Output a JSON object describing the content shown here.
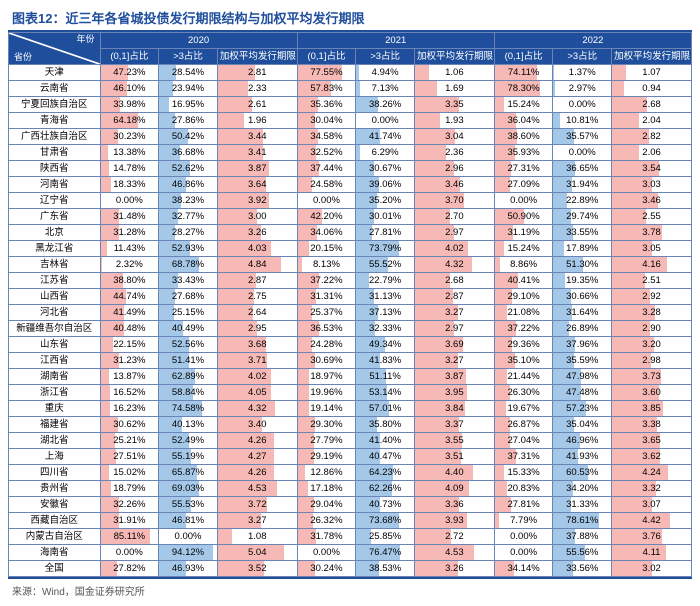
{
  "title": "图表12：近三年各省城投债发行期限结构与加权平均发行期限",
  "source": "来源：Wind，国金证券研究所",
  "header": {
    "cornerTop": "年份",
    "cornerBottom": "省份",
    "years": [
      "2020",
      "2021",
      "2022"
    ],
    "subcols": [
      "(0,1]占比",
      ">3占比",
      "加权平均发行期限"
    ]
  },
  "colors": {
    "headerBg": "#1f4e9c",
    "headerText": "#ffffff",
    "border": "#6a84b8",
    "barPink": "#f6b9b6",
    "barBlue": "#a6c8e8",
    "valText": "#000000"
  },
  "barMax": {
    "pct": 100,
    "wavg": 6
  },
  "rows": [
    {
      "name": "天津",
      "y": [
        {
          "a": 47.23,
          "b": 28.54,
          "w": 2.81
        },
        {
          "a": 77.55,
          "b": 4.94,
          "w": 1.06
        },
        {
          "a": 74.11,
          "b": 1.37,
          "w": 1.07
        }
      ]
    },
    {
      "name": "云南省",
      "y": [
        {
          "a": 46.1,
          "b": 23.94,
          "w": 2.33
        },
        {
          "a": 57.83,
          "b": 7.13,
          "w": 1.69
        },
        {
          "a": 78.3,
          "b": 2.97,
          "w": 0.94
        }
      ]
    },
    {
      "name": "宁夏回族自治区",
      "y": [
        {
          "a": 33.98,
          "b": 16.95,
          "w": 2.61
        },
        {
          "a": 35.36,
          "b": 38.26,
          "w": 3.35
        },
        {
          "a": 15.24,
          "b": 0.0,
          "w": 2.68
        }
      ]
    },
    {
      "name": "青海省",
      "y": [
        {
          "a": 64.18,
          "b": 27.86,
          "w": 1.96
        },
        {
          "a": 30.04,
          "b": 0.0,
          "w": 1.93
        },
        {
          "a": 36.04,
          "b": 10.81,
          "w": 2.04
        }
      ]
    },
    {
      "name": "广西壮族自治区",
      "y": [
        {
          "a": 30.23,
          "b": 50.42,
          "w": 3.44
        },
        {
          "a": 34.58,
          "b": 41.74,
          "w": 3.04
        },
        {
          "a": 38.6,
          "b": 35.57,
          "w": 2.82
        }
      ]
    },
    {
      "name": "甘肃省",
      "y": [
        {
          "a": 13.38,
          "b": 36.68,
          "w": 3.41
        },
        {
          "a": 32.52,
          "b": 6.29,
          "w": 2.36
        },
        {
          "a": 35.93,
          "b": 0.0,
          "w": 2.06
        }
      ]
    },
    {
      "name": "陕西省",
      "y": [
        {
          "a": 14.78,
          "b": 52.62,
          "w": 3.87
        },
        {
          "a": 37.44,
          "b": 30.67,
          "w": 2.96
        },
        {
          "a": 27.31,
          "b": 36.65,
          "w": 3.54
        }
      ]
    },
    {
      "name": "河南省",
      "y": [
        {
          "a": 18.33,
          "b": 46.86,
          "w": 3.64
        },
        {
          "a": 24.58,
          "b": 39.06,
          "w": 3.46
        },
        {
          "a": 27.09,
          "b": 31.94,
          "w": 3.03
        }
      ]
    },
    {
      "name": "辽宁省",
      "y": [
        {
          "a": 0.0,
          "b": 38.23,
          "w": 3.92
        },
        {
          "a": 0.0,
          "b": 35.2,
          "w": 3.7
        },
        {
          "a": 0.0,
          "b": 22.89,
          "w": 3.46
        }
      ]
    },
    {
      "name": "广东省",
      "y": [
        {
          "a": 31.48,
          "b": 32.77,
          "w": 3.0
        },
        {
          "a": 42.2,
          "b": 30.01,
          "w": 2.7
        },
        {
          "a": 50.9,
          "b": 29.74,
          "w": 2.55
        }
      ]
    },
    {
      "name": "北京",
      "y": [
        {
          "a": 31.28,
          "b": 28.27,
          "w": 3.26
        },
        {
          "a": 34.06,
          "b": 27.81,
          "w": 2.97
        },
        {
          "a": 31.19,
          "b": 33.55,
          "w": 3.78
        }
      ]
    },
    {
      "name": "黑龙江省",
      "y": [
        {
          "a": 11.43,
          "b": 52.93,
          "w": 4.03
        },
        {
          "a": 20.15,
          "b": 73.79,
          "w": 4.02
        },
        {
          "a": 15.24,
          "b": 17.89,
          "w": 3.05
        }
      ]
    },
    {
      "name": "吉林省",
      "y": [
        {
          "a": 2.32,
          "b": 68.78,
          "w": 4.84
        },
        {
          "a": 8.13,
          "b": 55.52,
          "w": 4.32
        },
        {
          "a": 8.86,
          "b": 51.3,
          "w": 4.16
        }
      ]
    },
    {
      "name": "江苏省",
      "y": [
        {
          "a": 38.8,
          "b": 33.43,
          "w": 2.87
        },
        {
          "a": 37.22,
          "b": 22.79,
          "w": 2.68
        },
        {
          "a": 40.41,
          "b": 19.35,
          "w": 2.51
        }
      ]
    },
    {
      "name": "山西省",
      "y": [
        {
          "a": 44.74,
          "b": 27.68,
          "w": 2.75
        },
        {
          "a": 31.31,
          "b": 31.13,
          "w": 2.87
        },
        {
          "a": 29.1,
          "b": 30.66,
          "w": 2.92
        }
      ]
    },
    {
      "name": "河北省",
      "y": [
        {
          "a": 41.49,
          "b": 25.15,
          "w": 2.64
        },
        {
          "a": 25.37,
          "b": 37.13,
          "w": 3.27
        },
        {
          "a": 21.08,
          "b": 31.64,
          "w": 3.28
        }
      ]
    },
    {
      "name": "新疆维吾尔自治区",
      "y": [
        {
          "a": 40.48,
          "b": 40.49,
          "w": 2.95
        },
        {
          "a": 36.53,
          "b": 32.33,
          "w": 2.97
        },
        {
          "a": 37.22,
          "b": 26.89,
          "w": 2.9
        }
      ]
    },
    {
      "name": "山东省",
      "y": [
        {
          "a": 22.15,
          "b": 52.56,
          "w": 3.68
        },
        {
          "a": 24.28,
          "b": 49.34,
          "w": 3.69
        },
        {
          "a": 29.36,
          "b": 37.96,
          "w": 3.2
        }
      ]
    },
    {
      "name": "江西省",
      "y": [
        {
          "a": 31.23,
          "b": 51.41,
          "w": 3.71
        },
        {
          "a": 30.69,
          "b": 41.83,
          "w": 3.27
        },
        {
          "a": 35.1,
          "b": 35.59,
          "w": 2.98
        }
      ]
    },
    {
      "name": "湖南省",
      "y": [
        {
          "a": 13.87,
          "b": 62.89,
          "w": 4.02
        },
        {
          "a": 18.97,
          "b": 51.11,
          "w": 3.87
        },
        {
          "a": 21.44,
          "b": 47.98,
          "w": 3.73
        }
      ]
    },
    {
      "name": "浙江省",
      "y": [
        {
          "a": 16.52,
          "b": 58.84,
          "w": 4.05
        },
        {
          "a": 19.96,
          "b": 53.14,
          "w": 3.95
        },
        {
          "a": 26.3,
          "b": 47.48,
          "w": 3.6
        }
      ]
    },
    {
      "name": "重庆",
      "y": [
        {
          "a": 16.23,
          "b": 74.58,
          "w": 4.32
        },
        {
          "a": 19.14,
          "b": 57.01,
          "w": 3.84
        },
        {
          "a": 19.67,
          "b": 57.23,
          "w": 3.85
        }
      ]
    },
    {
      "name": "福建省",
      "y": [
        {
          "a": 30.62,
          "b": 40.13,
          "w": 3.4
        },
        {
          "a": 29.3,
          "b": 35.8,
          "w": 3.37
        },
        {
          "a": 26.87,
          "b": 35.04,
          "w": 3.38
        }
      ]
    },
    {
      "name": "湖北省",
      "y": [
        {
          "a": 25.21,
          "b": 52.49,
          "w": 4.26
        },
        {
          "a": 27.79,
          "b": 41.4,
          "w": 3.55
        },
        {
          "a": 27.04,
          "b": 46.96,
          "w": 3.65
        }
      ]
    },
    {
      "name": "上海",
      "y": [
        {
          "a": 27.51,
          "b": 55.19,
          "w": 4.27
        },
        {
          "a": 29.19,
          "b": 40.47,
          "w": 3.51
        },
        {
          "a": 37.31,
          "b": 41.93,
          "w": 3.62
        }
      ]
    },
    {
      "name": "四川省",
      "y": [
        {
          "a": 15.02,
          "b": 65.87,
          "w": 4.26
        },
        {
          "a": 12.86,
          "b": 64.23,
          "w": 4.4
        },
        {
          "a": 15.33,
          "b": 60.53,
          "w": 4.24
        }
      ]
    },
    {
      "name": "贵州省",
      "y": [
        {
          "a": 18.79,
          "b": 69.03,
          "w": 4.53
        },
        {
          "a": 17.18,
          "b": 62.26,
          "w": 4.09
        },
        {
          "a": 20.83,
          "b": 34.2,
          "w": 3.32
        }
      ]
    },
    {
      "name": "安徽省",
      "y": [
        {
          "a": 32.26,
          "b": 55.53,
          "w": 3.72
        },
        {
          "a": 29.04,
          "b": 40.73,
          "w": 3.36
        },
        {
          "a": 27.81,
          "b": 31.33,
          "w": 3.07
        }
      ]
    },
    {
      "name": "西藏自治区",
      "y": [
        {
          "a": 31.91,
          "b": 46.81,
          "w": 3.27
        },
        {
          "a": 26.32,
          "b": 73.68,
          "w": 3.93
        },
        {
          "a": 7.79,
          "b": 78.61,
          "w": 4.42
        }
      ]
    },
    {
      "name": "内蒙古自治区",
      "y": [
        {
          "a": 85.11,
          "b": 0.0,
          "w": 1.08
        },
        {
          "a": 31.78,
          "b": 25.85,
          "w": 2.72
        },
        {
          "a": 0.0,
          "b": 37.88,
          "w": 3.76
        }
      ]
    },
    {
      "name": "海南省",
      "y": [
        {
          "a": 0.0,
          "b": 94.12,
          "w": 5.04
        },
        {
          "a": 0.0,
          "b": 76.47,
          "w": 4.53
        },
        {
          "a": 0.0,
          "b": 55.56,
          "w": 4.11
        }
      ]
    },
    {
      "name": "全国",
      "y": [
        {
          "a": 27.82,
          "b": 46.93,
          "w": 3.52
        },
        {
          "a": 30.24,
          "b": 38.53,
          "w": 3.26
        },
        {
          "a": 34.14,
          "b": 33.56,
          "w": 3.02
        }
      ]
    }
  ]
}
